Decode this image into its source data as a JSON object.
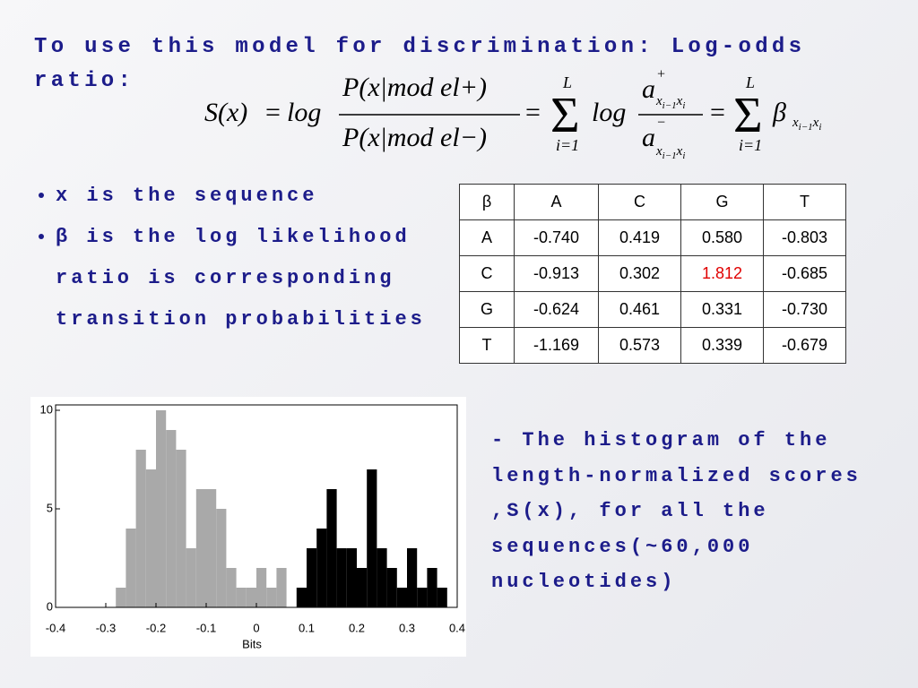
{
  "heading": "To use this model for discrimination: Log-odds ratio:",
  "equation": {
    "lhs": "S(x)",
    "eq1": "=",
    "log1": "log",
    "num": "P(x|mod el+)",
    "den": "P(x|mod el−)",
    "eq2": "=",
    "sum1_top": "L",
    "sum1_bottom": "i=1",
    "log2": "log",
    "a_num": "a",
    "a_num_sup": "+",
    "a_den": "a",
    "a_den_sup": "−",
    "a_sub": [
      "x",
      "i−1",
      "x",
      "i"
    ],
    "eq3": "=",
    "sum2_top": "L",
    "sum2_bottom": "i=1",
    "beta": "β",
    "beta_sub": [
      "x",
      "i−1",
      "x",
      "i"
    ]
  },
  "bullets": [
    "x is the sequence",
    "β is the log likelihood ratio is corresponding transition probabilities"
  ],
  "table": {
    "header": [
      "β",
      "A",
      "C",
      "G",
      "T"
    ],
    "rows": [
      [
        "A",
        "-0.740",
        "0.419",
        "0.580",
        "-0.803"
      ],
      [
        "C",
        "-0.913",
        "0.302",
        "1.812",
        "-0.685"
      ],
      [
        "G",
        "-0.624",
        "0.461",
        "0.331",
        "-0.730"
      ],
      [
        "T",
        "-1.169",
        "0.573",
        "0.339",
        "-0.679"
      ]
    ]
  },
  "caption": [
    "- The histogram of the",
    "length-normalized scores",
    ",S(x), for all the",
    "sequences(~60,000",
    "nucleotides)"
  ],
  "chart_data": {
    "type": "histogram",
    "x_label": "Bits",
    "bins": [
      -0.28,
      -0.26,
      -0.24,
      -0.22,
      -0.2,
      -0.18,
      -0.16,
      -0.14,
      -0.12,
      -0.1,
      -0.08,
      -0.06,
      -0.04,
      -0.02,
      0,
      0.02,
      0.04,
      0.06,
      0.08,
      0.1,
      0.12,
      0.14,
      0.16,
      0.18,
      0.2,
      0.22,
      0.24,
      0.26,
      0.28,
      0.3,
      0.32,
      0.34,
      0.36,
      0.38
    ],
    "series": [
      {
        "color": "#a9a9a9",
        "values": [
          1,
          4,
          8,
          7,
          10,
          9,
          8,
          3,
          6,
          6,
          5,
          2,
          1,
          1,
          2,
          1,
          2,
          0,
          0,
          0,
          0,
          0,
          0,
          0,
          0,
          0,
          0,
          0,
          0,
          0,
          0,
          0,
          0
        ]
      },
      {
        "color": "#000000",
        "values": [
          0,
          0,
          0,
          0,
          0,
          0,
          0,
          0,
          0,
          0,
          0,
          0,
          0,
          0,
          0,
          0,
          0,
          0,
          1,
          3,
          4,
          6,
          3,
          3,
          2,
          7,
          3,
          2,
          1,
          3,
          1,
          2,
          1
        ]
      }
    ],
    "xlim": [
      -0.4,
      0.4
    ],
    "xticks": [
      -0.4,
      -0.3,
      -0.2,
      -0.1,
      0,
      0.1,
      0.2,
      0.3,
      0.4
    ],
    "ylim": [
      0,
      10
    ],
    "yticks": [
      0,
      5,
      10
    ]
  }
}
